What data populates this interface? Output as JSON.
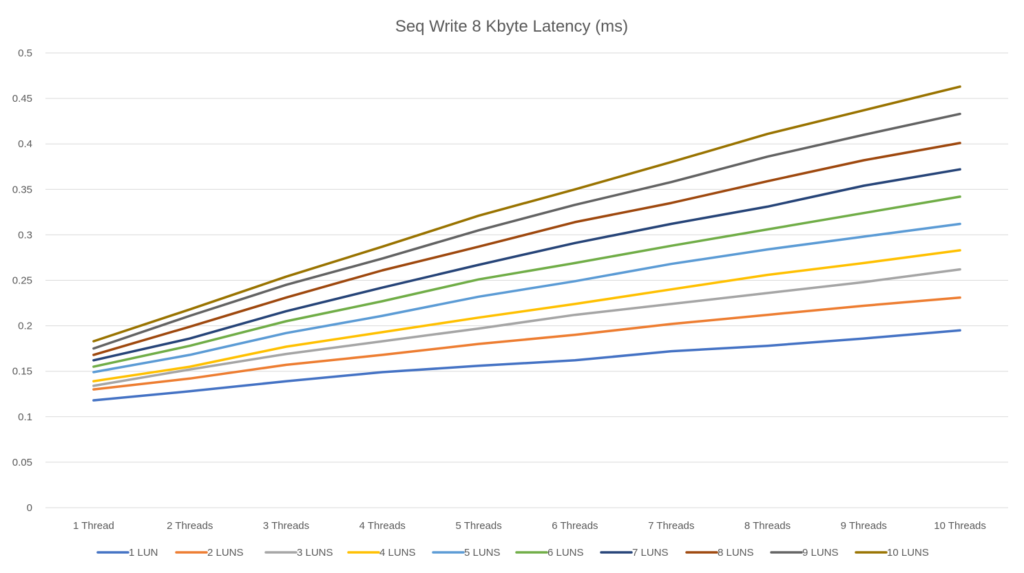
{
  "chart_data": {
    "type": "line",
    "title": "Seq Write 8 Kbyte Latency (ms)",
    "xlabel": "",
    "ylabel": "",
    "ylim": [
      0,
      0.5
    ],
    "y_ticks": [
      0,
      0.05,
      0.1,
      0.15,
      0.2,
      0.25,
      0.3,
      0.35,
      0.4,
      0.45,
      0.5
    ],
    "y_tick_labels": [
      "0",
      "0.05",
      "0.1",
      "0.15",
      "0.2",
      "0.25",
      "0.3",
      "0.35",
      "0.4",
      "0.45",
      "0.5"
    ],
    "grid": true,
    "legend_position": "bottom",
    "categories": [
      "1 Thread",
      "2 Threads",
      "3 Threads",
      "4 Threads",
      "5 Threads",
      "6 Threads",
      "7 Threads",
      "8 Threads",
      "9 Threads",
      "10 Threads"
    ],
    "series": [
      {
        "name": "1 LUN",
        "color": "#4472c4",
        "values": [
          0.118,
          0.128,
          0.139,
          0.149,
          0.156,
          0.162,
          0.172,
          0.178,
          0.186,
          0.195
        ]
      },
      {
        "name": "2 LUNS",
        "color": "#ed7d31",
        "values": [
          0.13,
          0.142,
          0.157,
          0.168,
          0.18,
          0.19,
          0.202,
          0.212,
          0.222,
          0.231
        ]
      },
      {
        "name": "3 LUNS",
        "color": "#a5a5a5",
        "values": [
          0.134,
          0.152,
          0.169,
          0.183,
          0.197,
          0.212,
          0.224,
          0.236,
          0.248,
          0.262
        ]
      },
      {
        "name": "4 LUNS",
        "color": "#ffc000",
        "values": [
          0.139,
          0.155,
          0.177,
          0.193,
          0.209,
          0.224,
          0.24,
          0.256,
          0.269,
          0.283
        ]
      },
      {
        "name": "5 LUNS",
        "color": "#5b9bd5",
        "values": [
          0.149,
          0.168,
          0.192,
          0.211,
          0.232,
          0.249,
          0.268,
          0.284,
          0.298,
          0.312
        ]
      },
      {
        "name": "6 LUNS",
        "color": "#70ad47",
        "values": [
          0.155,
          0.178,
          0.205,
          0.227,
          0.251,
          0.269,
          0.288,
          0.306,
          0.324,
          0.342
        ]
      },
      {
        "name": "7 LUNS",
        "color": "#264478",
        "values": [
          0.162,
          0.186,
          0.216,
          0.242,
          0.267,
          0.291,
          0.312,
          0.331,
          0.354,
          0.372
        ]
      },
      {
        "name": "8 LUNS",
        "color": "#9e480e",
        "values": [
          0.168,
          0.199,
          0.231,
          0.261,
          0.287,
          0.314,
          0.335,
          0.359,
          0.382,
          0.401
        ]
      },
      {
        "name": "9 LUNS",
        "color": "#636363",
        "values": [
          0.175,
          0.211,
          0.245,
          0.274,
          0.305,
          0.333,
          0.358,
          0.386,
          0.41,
          0.433
        ]
      },
      {
        "name": "10 LUNS",
        "color": "#997300",
        "values": [
          0.183,
          0.218,
          0.254,
          0.287,
          0.321,
          0.35,
          0.38,
          0.411,
          0.437,
          0.463
        ]
      }
    ]
  }
}
